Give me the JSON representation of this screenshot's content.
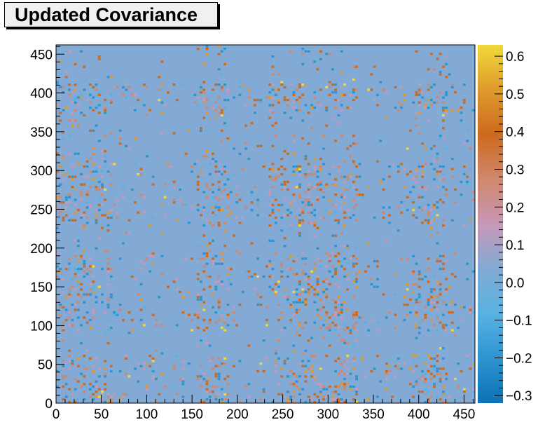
{
  "chart_data": {
    "type": "heatmap",
    "title": "Updated Covariance",
    "xlabel": "",
    "ylabel": "",
    "xlim": [
      0,
      462
    ],
    "ylim": [
      0,
      462
    ],
    "zlim": [
      -0.32,
      0.63
    ],
    "x_ticks": [
      "0",
      "50",
      "100",
      "150",
      "200",
      "250",
      "300",
      "350",
      "400",
      "450"
    ],
    "y_ticks": [
      "0",
      "50",
      "100",
      "150",
      "200",
      "250",
      "300",
      "350",
      "400",
      "450"
    ],
    "colorbar_ticks": [
      "−0.3",
      "−0.2",
      "−0.1",
      "0.0",
      "0.1",
      "0.2",
      "0.3",
      "0.4",
      "0.5",
      "0.6"
    ],
    "colorbar_values": [
      -0.3,
      -0.2,
      -0.1,
      0.0,
      0.1,
      0.2,
      0.3,
      0.4,
      0.5,
      0.6
    ],
    "background_value": 0.0,
    "palette": [
      "#0b73b5",
      "#2d94cf",
      "#58b2e2",
      "#82aad4",
      "#c898b8",
      "#d0876c",
      "#cd6a1e",
      "#de9a2c",
      "#f0d93a"
    ],
    "structure_bands_x": [
      [
        0,
        60
      ],
      [
        155,
        190
      ],
      [
        233,
        330
      ],
      [
        390,
        430
      ]
    ],
    "structure_bands_y": [
      [
        0,
        60
      ],
      [
        90,
        190
      ],
      [
        230,
        310
      ],
      [
        370,
        410
      ]
    ],
    "grid": false,
    "legend": "colorbar-right"
  }
}
